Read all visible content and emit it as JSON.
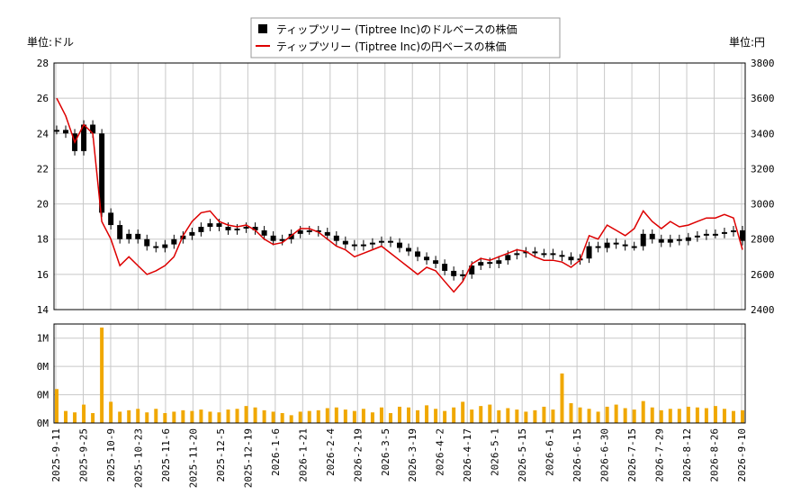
{
  "chart_data": {
    "type": "line",
    "legend": {
      "position": "top-center",
      "entries": [
        {
          "name": "ティップツリー (Tiptree Inc)のドルベースの株価",
          "color": "#000000",
          "marker": "square"
        },
        {
          "name": "ティップツリー (Tiptree Inc)の円ベースの株価",
          "color": "#dd0000",
          "marker": "line"
        }
      ]
    },
    "left_unit_label": "単位:ドル",
    "right_unit_label": "単位:円",
    "price_axis_left": {
      "min": 14,
      "max": 28,
      "ticks": [
        "14",
        "16",
        "18",
        "20",
        "22",
        "24",
        "26",
        "28"
      ]
    },
    "price_axis_right": {
      "min": 2400,
      "max": 3800,
      "ticks": [
        "2400",
        "2600",
        "2800",
        "3000",
        "3200",
        "3400",
        "3600",
        "3800"
      ]
    },
    "volume_axis": {
      "min": 0,
      "max": 1400000,
      "ticks": [
        "0M",
        "0M",
        "0M",
        "1M"
      ]
    },
    "x_dates": [
      "2025-9-11",
      "2025-9-25",
      "2025-10-9",
      "2025-10-23",
      "2025-11-6",
      "2025-11-20",
      "2025-12-5",
      "2025-12-19",
      "2026-1-6",
      "2026-1-21",
      "2026-2-4",
      "2026-2-19",
      "2026-3-5",
      "2026-3-19",
      "2026-4-2",
      "2026-4-17",
      "2026-5-1",
      "2026-5-15",
      "2026-6-1",
      "2026-6-15",
      "2026-6-30",
      "2026-7-15",
      "2026-7-29",
      "2026-8-12",
      "2026-8-26",
      "2026-9-10"
    ],
    "usd_series": [
      24.2,
      24.0,
      23.0,
      24.5,
      24.0,
      19.5,
      18.8,
      18.0,
      18.3,
      18.0,
      17.6,
      17.5,
      17.7,
      18.0,
      18.2,
      18.4,
      18.7,
      18.9,
      18.7,
      18.5,
      18.6,
      18.7,
      18.5,
      18.2,
      17.9,
      18.0,
      18.3,
      18.5,
      18.5,
      18.4,
      18.2,
      17.9,
      17.7,
      17.6,
      17.7,
      17.8,
      17.9,
      17.8,
      17.5,
      17.3,
      17.0,
      16.8,
      16.6,
      16.2,
      15.9,
      16.0,
      16.5,
      16.7,
      16.6,
      16.8,
      17.1,
      17.2,
      17.3,
      17.2,
      17.2,
      17.1,
      17.0,
      16.8,
      16.9,
      17.6,
      17.5,
      17.8,
      17.7,
      17.6,
      17.6,
      18.3,
      18.0,
      17.8,
      18.0,
      17.9,
      18.1,
      18.2,
      18.3,
      18.3,
      18.4,
      18.5,
      17.9
    ],
    "jpy_series": [
      3600,
      3500,
      3350,
      3450,
      3400,
      2900,
      2800,
      2650,
      2700,
      2650,
      2600,
      2620,
      2650,
      2700,
      2820,
      2900,
      2950,
      2960,
      2900,
      2880,
      2870,
      2880,
      2850,
      2800,
      2770,
      2780,
      2820,
      2860,
      2860,
      2840,
      2800,
      2760,
      2740,
      2700,
      2720,
      2740,
      2760,
      2720,
      2680,
      2640,
      2600,
      2640,
      2620,
      2560,
      2500,
      2560,
      2660,
      2690,
      2680,
      2700,
      2720,
      2740,
      2730,
      2700,
      2680,
      2680,
      2670,
      2640,
      2680,
      2820,
      2800,
      2880,
      2850,
      2820,
      2860,
      2960,
      2900,
      2860,
      2900,
      2870,
      2880,
      2900,
      2920,
      2920,
      2940,
      2920,
      2740
    ],
    "volume_series": [
      480000,
      170000,
      150000,
      260000,
      140000,
      1350000,
      300000,
      160000,
      180000,
      200000,
      150000,
      200000,
      140000,
      160000,
      180000,
      170000,
      190000,
      160000,
      150000,
      190000,
      200000,
      240000,
      220000,
      180000,
      160000,
      140000,
      110000,
      160000,
      170000,
      180000,
      210000,
      220000,
      190000,
      170000,
      200000,
      150000,
      220000,
      140000,
      230000,
      220000,
      180000,
      250000,
      200000,
      170000,
      220000,
      300000,
      190000,
      240000,
      260000,
      180000,
      210000,
      190000,
      160000,
      180000,
      230000,
      190000,
      700000,
      280000,
      220000,
      200000,
      160000,
      230000,
      260000,
      210000,
      190000,
      310000,
      220000,
      180000,
      200000,
      200000,
      230000,
      220000,
      210000,
      240000,
      200000,
      170000,
      180000
    ]
  }
}
